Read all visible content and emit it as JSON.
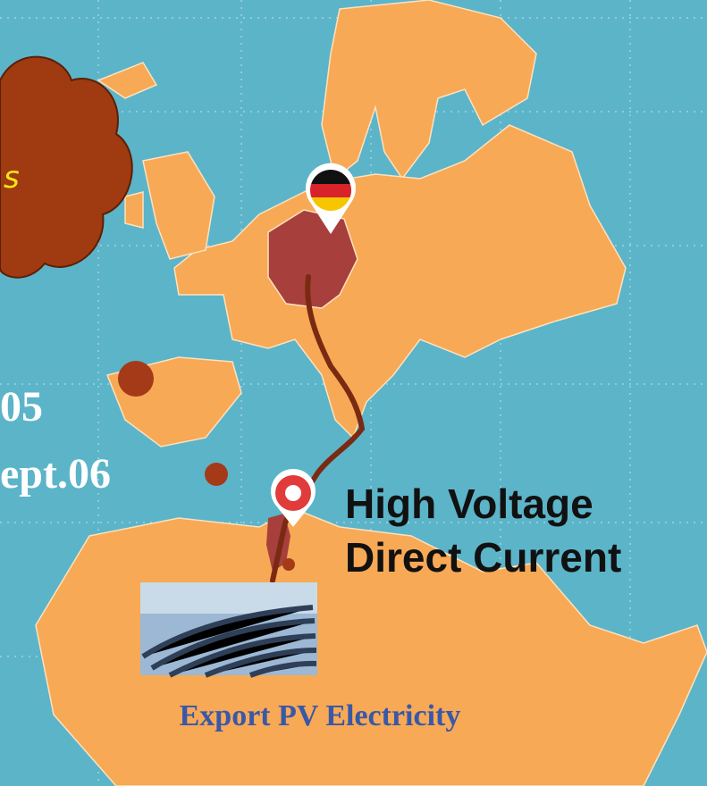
{
  "cloud_text": "s",
  "dates": {
    "line1": "05",
    "line2": "ept.06"
  },
  "hvdc": {
    "line1": "High Voltage",
    "line2": "Direct Current"
  },
  "caption": "Export PV Electricity"
}
